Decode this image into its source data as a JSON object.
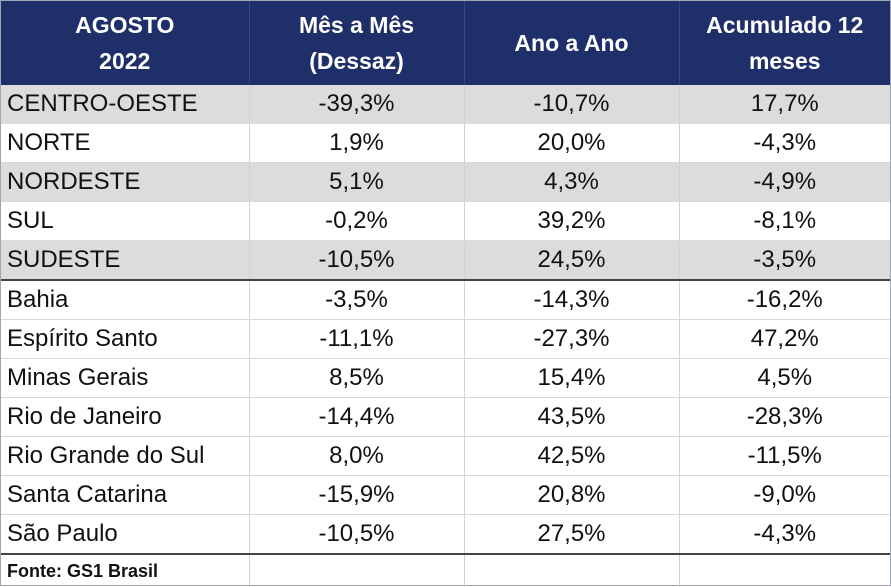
{
  "header": {
    "col1": [
      "AGOSTO",
      "2022"
    ],
    "col2": [
      "Mês a Mês",
      "(Dessaz)"
    ],
    "col3": [
      "Ano a Ano"
    ],
    "col4": [
      "Acumulado 12",
      "meses"
    ]
  },
  "regions": [
    {
      "name": "CENTRO-OESTE",
      "mom": "-39,3%",
      "yoy": "-10,7%",
      "acc": "17,7%"
    },
    {
      "name": "NORTE",
      "mom": "1,9%",
      "yoy": "20,0%",
      "acc": "-4,3%"
    },
    {
      "name": "NORDESTE",
      "mom": "5,1%",
      "yoy": "4,3%",
      "acc": "-4,9%"
    },
    {
      "name": "SUL",
      "mom": "-0,2%",
      "yoy": "39,2%",
      "acc": "-8,1%"
    },
    {
      "name": "SUDESTE",
      "mom": "-10,5%",
      "yoy": "24,5%",
      "acc": "-3,5%"
    }
  ],
  "states": [
    {
      "name": "Bahia",
      "mom": "-3,5%",
      "yoy": "-14,3%",
      "acc": "-16,2%"
    },
    {
      "name": "Espírito Santo",
      "mom": "-11,1%",
      "yoy": "-27,3%",
      "acc": "47,2%"
    },
    {
      "name": "Minas Gerais",
      "mom": "8,5%",
      "yoy": "15,4%",
      "acc": "4,5%"
    },
    {
      "name": "Rio de Janeiro",
      "mom": "-14,4%",
      "yoy": "43,5%",
      "acc": "-28,3%"
    },
    {
      "name": "Rio Grande do Sul",
      "mom": "8,0%",
      "yoy": "42,5%",
      "acc": "-11,5%"
    },
    {
      "name": "Santa Catarina",
      "mom": "-15,9%",
      "yoy": "20,8%",
      "acc": "-9,0%"
    },
    {
      "name": "São Paulo",
      "mom": "-10,5%",
      "yoy": "27,5%",
      "acc": "-4,3%"
    }
  ],
  "source": "Fonte: GS1 Brasil"
}
